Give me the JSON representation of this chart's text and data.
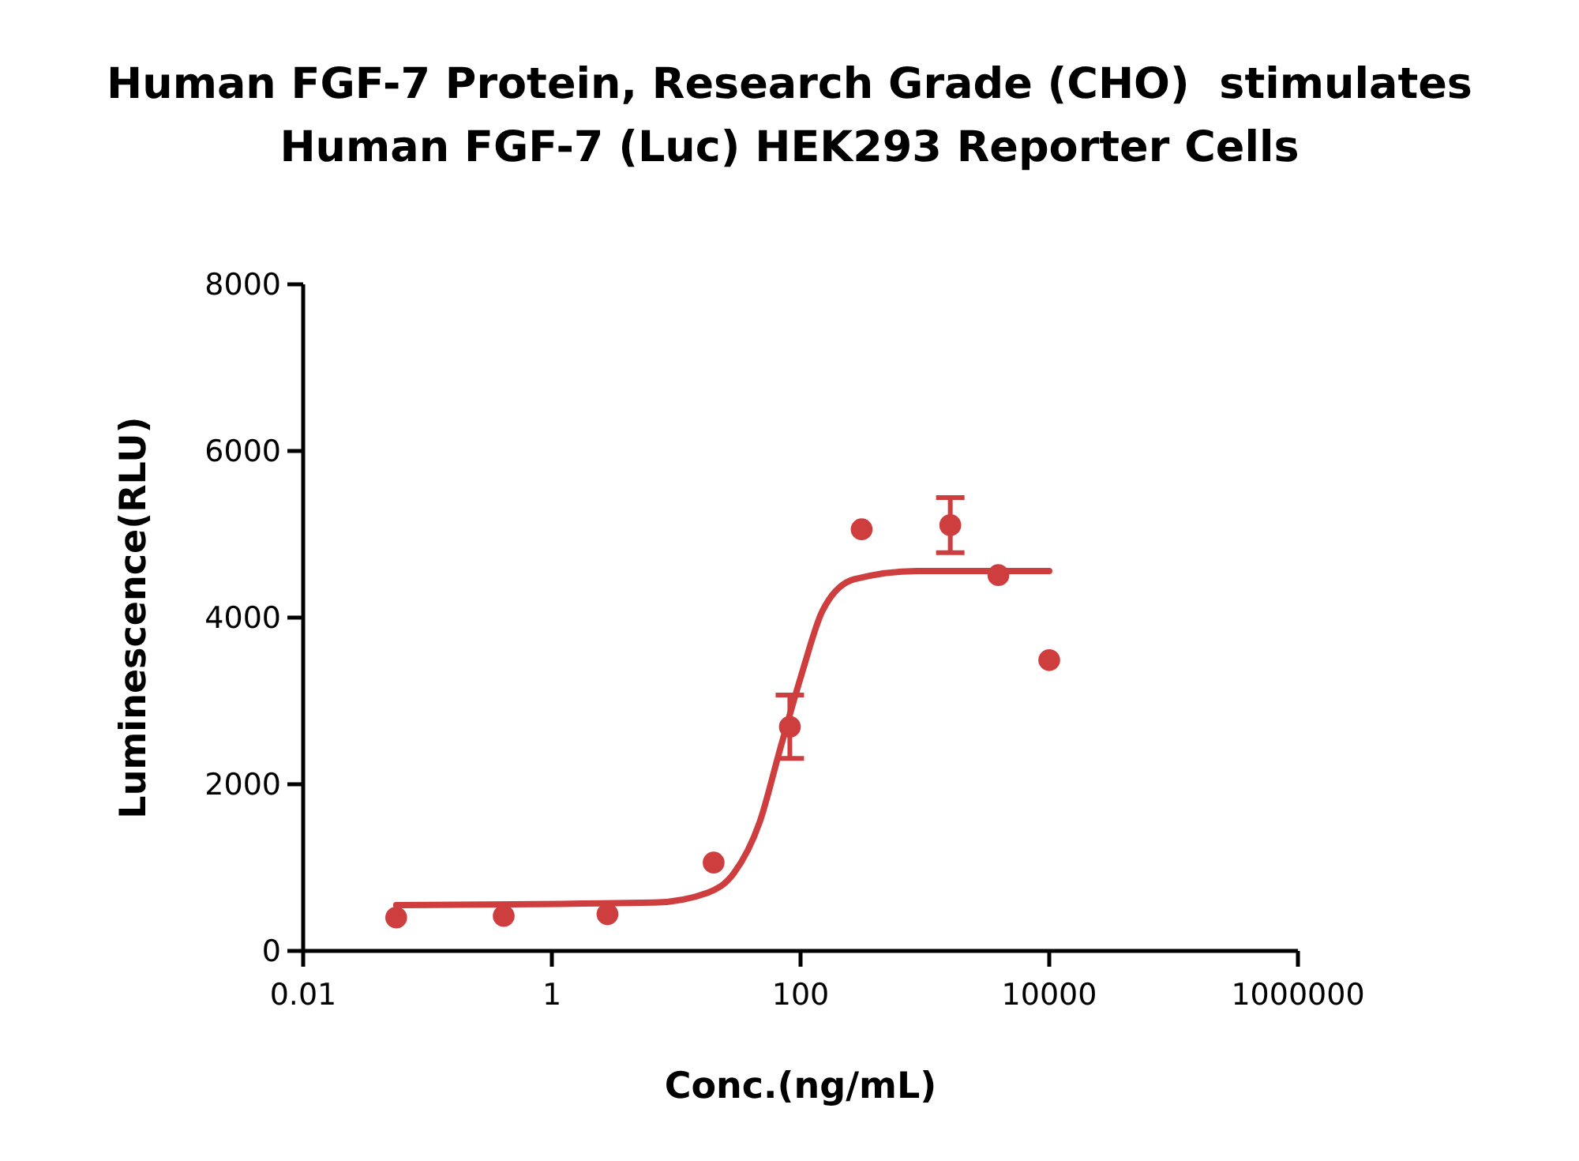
{
  "chart_data": {
    "type": "scatter",
    "title": "Human FGF-7 Protein, Research Grade (CHO)  stimulates\nHuman FGF-7 (Luc) HEK293 Reporter Cells",
    "xlabel": "Conc.(ng/mL)",
    "ylabel": "Luminescence(RLU)",
    "log": "x",
    "xlim": [
      0.01,
      1000000
    ],
    "xticks": [
      0.01,
      1,
      100,
      10000,
      1000000
    ],
    "ylim": [
      0,
      8000
    ],
    "yticks": [
      0,
      2000,
      4000,
      6000,
      8000
    ],
    "grid": false,
    "marker": "circle",
    "series": [
      {
        "color": "#cf3e3e",
        "x": [
          0.056,
          0.41,
          2.8,
          20,
          82,
          310,
          1600,
          3900,
          10000
        ],
        "values": [
          400,
          420,
          440,
          1060,
          2690,
          5060,
          5110,
          4510,
          3490
        ],
        "errors": [
          null,
          null,
          null,
          null,
          [
            2310,
            3070
          ],
          null,
          [
            4780,
            5440
          ],
          null,
          null
        ]
      },
      {
        "type": "line",
        "color": "#cf3e3e",
        "marker": "none",
        "line_style": "solid",
        "x": [
          0.056,
          6.6,
          18,
          29,
          47,
          69,
          102,
          150,
          270,
          870,
          10000
        ],
        "values": [
          550,
          580,
          700,
          930,
          1550,
          2440,
          3320,
          4080,
          4460,
          4560,
          4560
        ]
      }
    ]
  }
}
